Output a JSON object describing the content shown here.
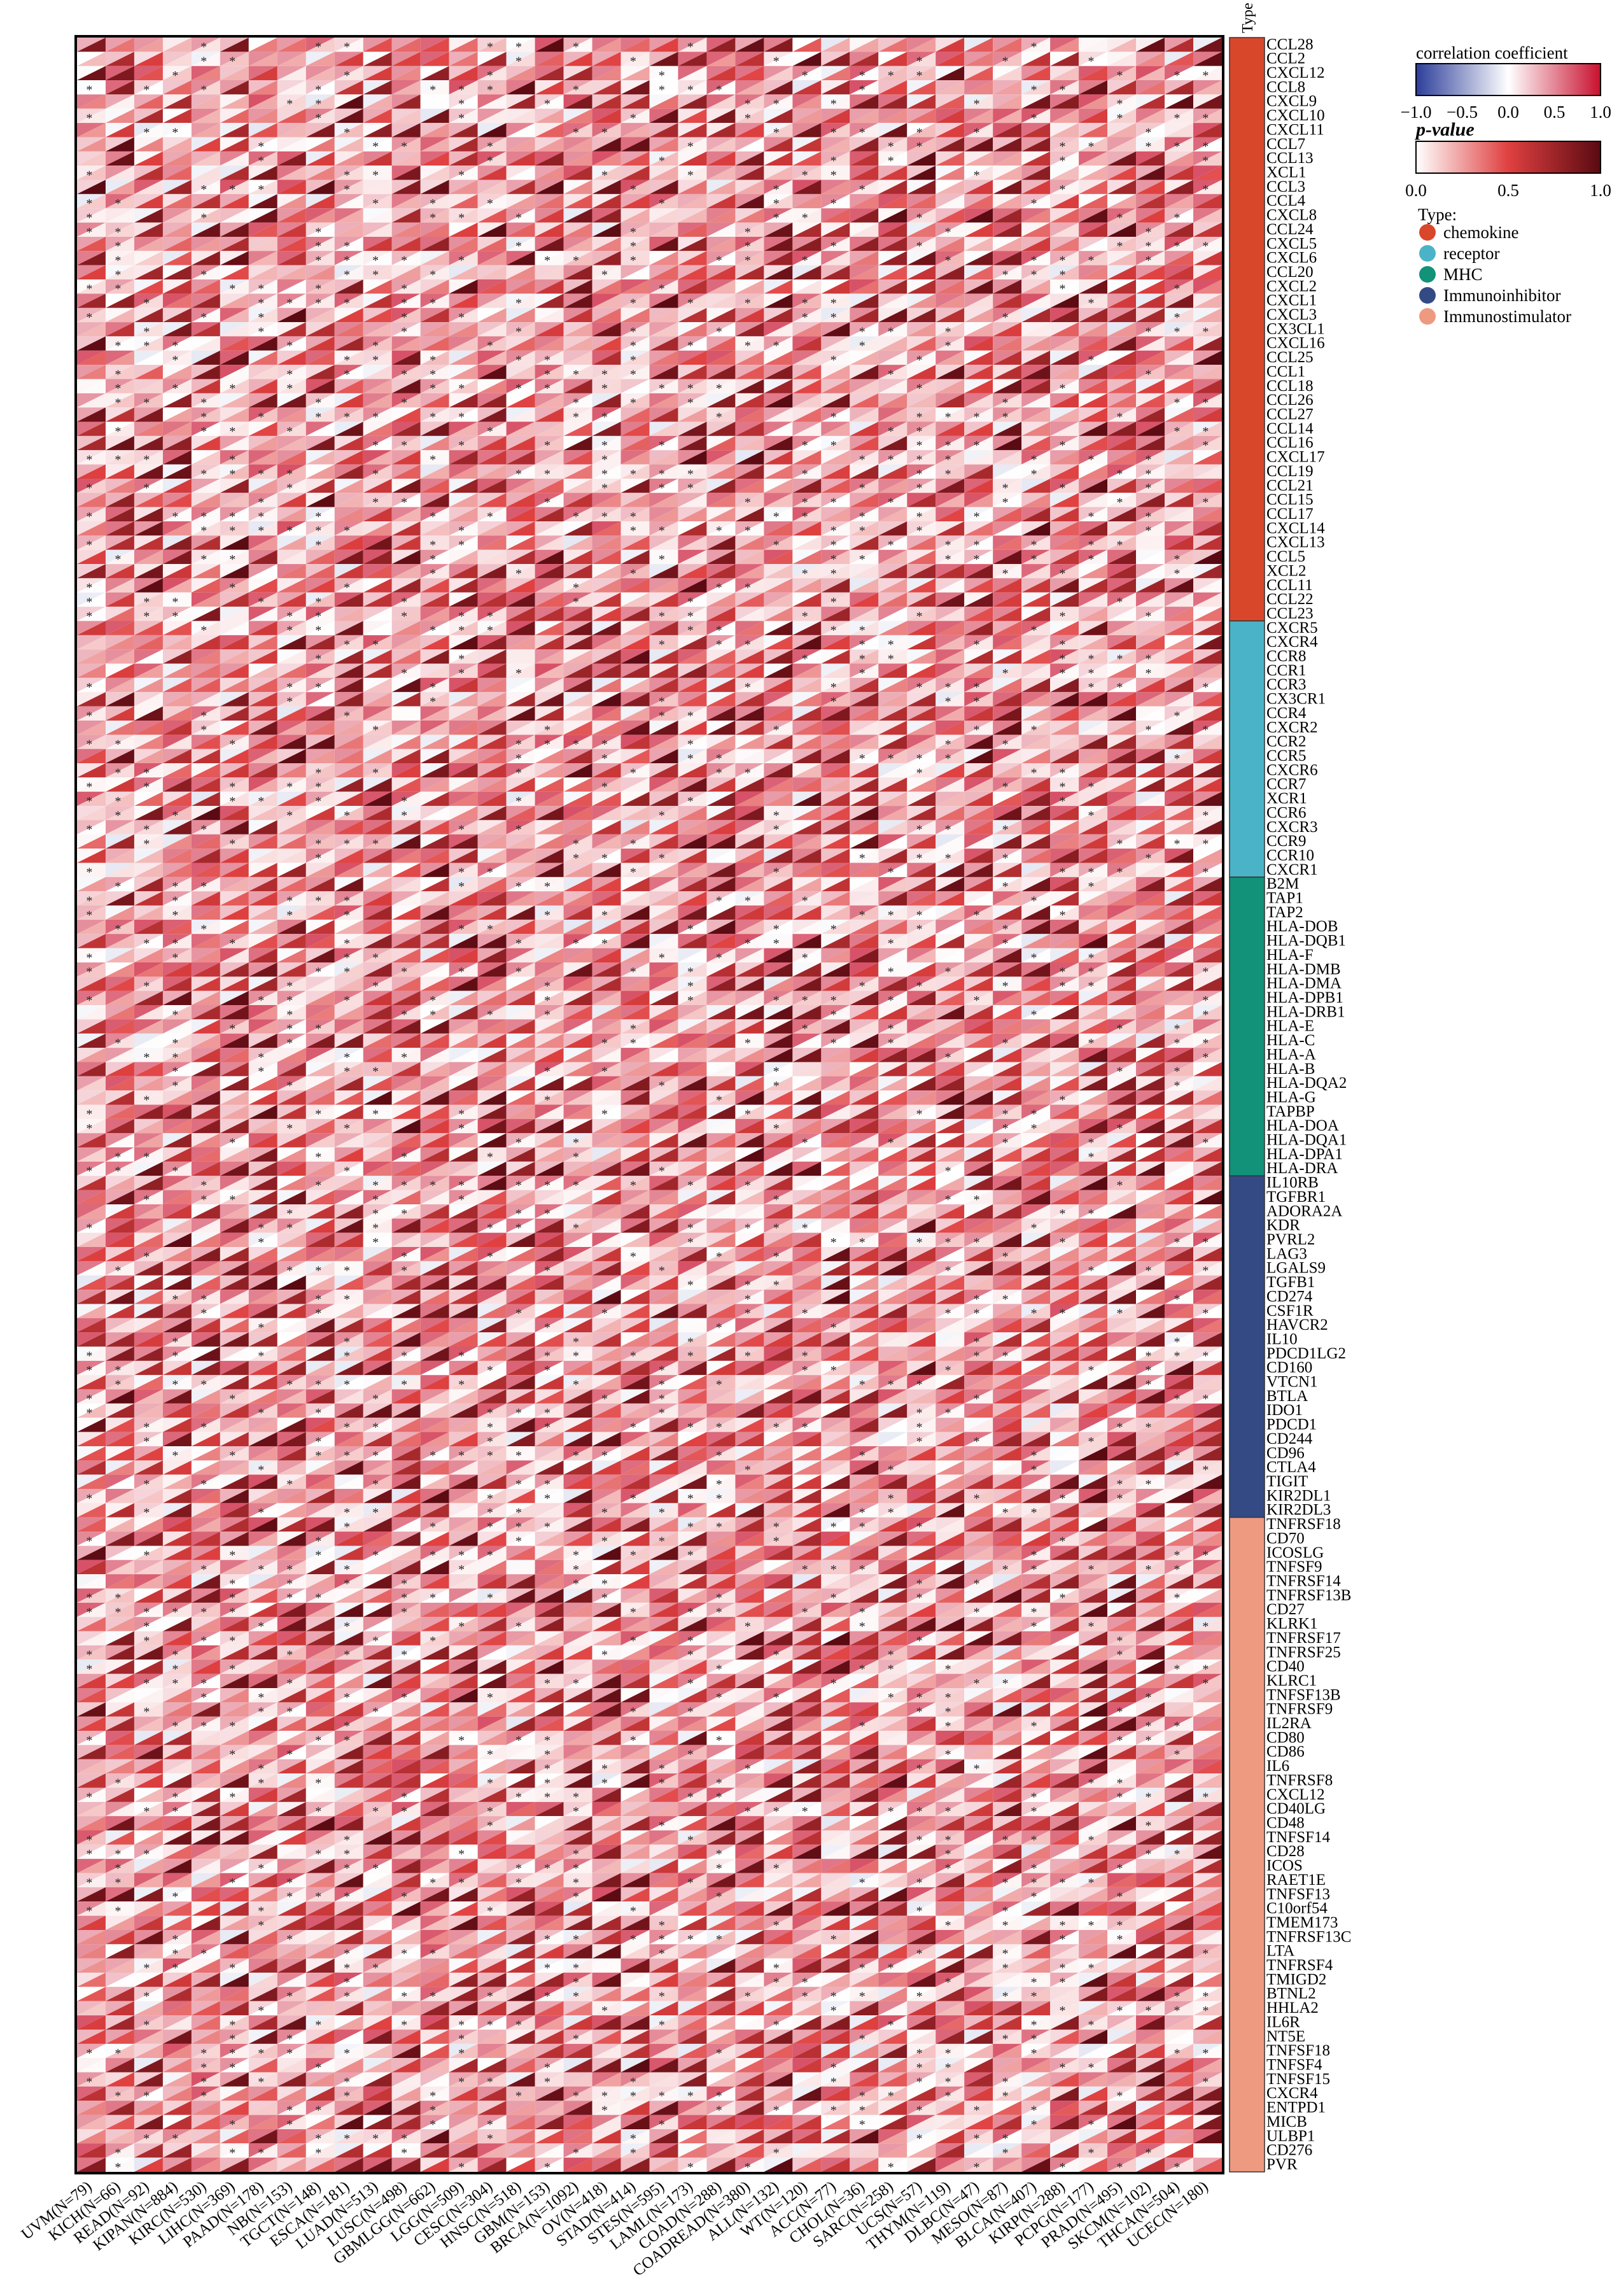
{
  "chart_data": {
    "type": "heatmap",
    "title": "",
    "xlabel": "",
    "ylabel": "",
    "type_column_label": "Type",
    "colorbar_correlation": {
      "title": "correlation coefficient",
      "ticks": [
        "−1.0",
        "−0.5",
        "0.0",
        "0.5",
        "1.0"
      ],
      "range": [
        -1,
        1
      ],
      "colors": [
        "#2c3e9a",
        "#ffffff",
        "#c8102e"
      ]
    },
    "colorbar_pvalue": {
      "title": "p-value",
      "ticks": [
        "0.0",
        "0.5",
        "1.0"
      ],
      "range": [
        0,
        1
      ],
      "colors": [
        "#ffffff",
        "#c8102e",
        "#5a0a12"
      ]
    },
    "type_legend": {
      "title": "Type:",
      "items": [
        {
          "label": "chemokine",
          "color": "#d9472b"
        },
        {
          "label": "receptor",
          "color": "#4bb3c8"
        },
        {
          "label": "MHC",
          "color": "#119279"
        },
        {
          "label": "Immunoinhibitor",
          "color": "#334a85"
        },
        {
          "label": "Immunostimulator",
          "color": "#ee9a80"
        }
      ]
    },
    "cancers": [
      "UVM(N=79)",
      "KICH(N=66)",
      "READ(N=92)",
      "KIPAN(N=884)",
      "KIRC(N=530)",
      "LIHC(N=369)",
      "PAAD(N=178)",
      "NB(N=153)",
      "TGCT(N=148)",
      "ESCA(N=181)",
      "LUAD(N=513)",
      "LUSC(N=498)",
      "GBMLGG(N=662)",
      "LGG(N=509)",
      "CESC(N=304)",
      "HNSC(N=518)",
      "GBM(N=153)",
      "BRCA(N=1092)",
      "OV(N=418)",
      "STAD(N=414)",
      "STES(N=595)",
      "LAML(N=173)",
      "COAD(N=288)",
      "COADREAD(N=380)",
      "ALL(N=132)",
      "WT(N=120)",
      "ACC(N=77)",
      "CHOL(N=36)",
      "SARC(N=258)",
      "UCS(N=57)",
      "THYM(N=119)",
      "DLBC(N=47)",
      "MESO(N=87)",
      "BLCA(N=407)",
      "KIRP(N=288)",
      "PCPG(N=177)",
      "PRAD(N=495)",
      "SKCM(N=102)",
      "THCA(N=504)",
      "UCEC(N=180)"
    ],
    "gene_groups": [
      {
        "type": "chemokine",
        "genes": [
          "CCL28",
          "CCL2",
          "CXCL12",
          "CCL8",
          "CXCL9",
          "CXCL10",
          "CXCL11",
          "CCL7",
          "CCL13",
          "XCL1",
          "CCL3",
          "CCL4",
          "CXCL8",
          "CCL24",
          "CXCL5",
          "CXCL6",
          "CCL20",
          "CXCL2",
          "CXCL1",
          "CXCL3",
          "CX3CL1",
          "CXCL16",
          "CCL25",
          "CCL1",
          "CCL18",
          "CCL26",
          "CCL27",
          "CCL14",
          "CCL16",
          "CXCL17",
          "CCL19",
          "CCL21",
          "CCL15",
          "CCL17",
          "CXCL14",
          "CXCL13",
          "CCL5",
          "XCL2",
          "CCL11",
          "CCL22",
          "CCL23"
        ]
      },
      {
        "type": "receptor",
        "genes": [
          "CXCR5",
          "CXCR4",
          "CCR8",
          "CCR1",
          "CCR3",
          "CX3CR1",
          "CCR4",
          "CXCR2",
          "CCR2",
          "CCR5",
          "CXCR6",
          "CCR7",
          "XCR1",
          "CCR6",
          "CXCR3",
          "CCR9",
          "CCR10",
          "CXCR1"
        ]
      },
      {
        "type": "MHC",
        "genes": [
          "B2M",
          "TAP1",
          "TAP2",
          "HLA-DOB",
          "HLA-DQB1",
          "HLA-F",
          "HLA-DMB",
          "HLA-DMA",
          "HLA-DPB1",
          "HLA-DRB1",
          "HLA-E",
          "HLA-C",
          "HLA-A",
          "HLA-B",
          "HLA-DQA2",
          "HLA-G",
          "TAPBP",
          "HLA-DOA",
          "HLA-DQA1",
          "HLA-DPA1",
          "HLA-DRA"
        ]
      },
      {
        "type": "Immunoinhibitor",
        "genes": [
          "IL10RB",
          "TGFBR1",
          "ADORA2A",
          "KDR",
          "PVRL2",
          "LAG3",
          "LGALS9",
          "TGFB1",
          "CD274",
          "CSF1R",
          "HAVCR2",
          "IL10",
          "PDCD1LG2",
          "CD160",
          "VTCN1",
          "BTLA",
          "IDO1",
          "PDCD1",
          "CD244",
          "CD96",
          "CTLA4",
          "TIGIT",
          "KIR2DL1",
          "KIR2DL3"
        ]
      },
      {
        "type": "Immunostimulator",
        "genes": [
          "TNFRSF18",
          "CD70",
          "ICOSLG",
          "TNFSF9",
          "TNFRSF14",
          "TNFRSF13B",
          "CD27",
          "KLRK1",
          "TNFRSF17",
          "TNFRSF25",
          "CD40",
          "KLRC1",
          "TNFSF13B",
          "TNFRSF9",
          "IL2RA",
          "CD80",
          "CD86",
          "IL6",
          "TNFRSF8",
          "CXCL12",
          "CD40LG",
          "CD48",
          "TNFSF14",
          "CD28",
          "ICOS",
          "RAET1E",
          "TNFSF13",
          "C10orf54",
          "TMEM173",
          "TNFRSF13C",
          "LTA",
          "TNFRSF4",
          "TMIGD2",
          "BTNL2",
          "HHLA2",
          "IL6R",
          "NT5E",
          "TNFSF18",
          "TNFSF4",
          "TNFSF15",
          "CXCR4",
          "ENTPD1",
          "MICB",
          "ULBP1",
          "CD276",
          "PVR"
        ]
      }
    ],
    "cell_encoding": "upper-left triangle = correlation coefficient, lower-right triangle = p-value, * = significant",
    "grid": false,
    "legend_position": "top-right"
  }
}
